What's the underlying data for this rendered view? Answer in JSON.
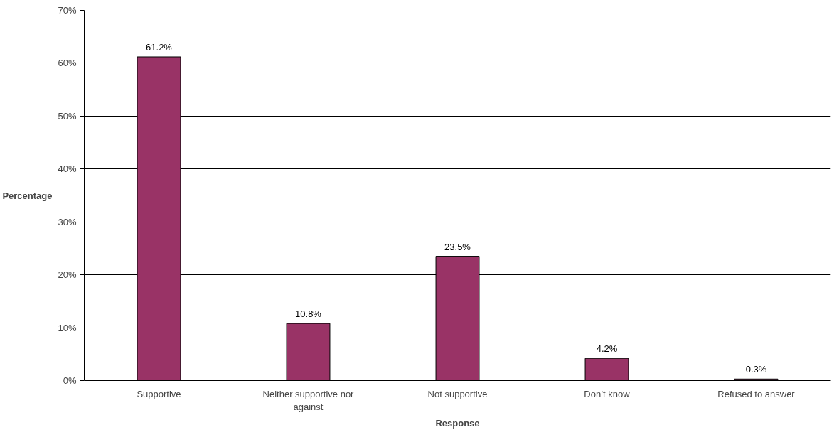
{
  "chart_data": {
    "type": "bar",
    "xlabel": "Response",
    "ylabel": "Percentage",
    "categories": [
      "Supportive",
      "Neither supportive nor against",
      "Not supportive",
      "Don’t know",
      "Refused to answer"
    ],
    "values": [
      61.2,
      10.8,
      23.5,
      4.2,
      0.3
    ],
    "value_labels": [
      "61.2%",
      "10.8%",
      "23.5%",
      "4.2%",
      "0.3%"
    ],
    "color": "#993366",
    "ylim": [
      0,
      70
    ],
    "yticks": [
      {
        "value": 0,
        "label": "0%"
      },
      {
        "value": 10,
        "label": "10%"
      },
      {
        "value": 20,
        "label": "20%"
      },
      {
        "value": 30,
        "label": "30%"
      },
      {
        "value": 40,
        "label": "40%"
      },
      {
        "value": 50,
        "label": "50%"
      },
      {
        "value": 60,
        "label": "60%"
      },
      {
        "value": 70,
        "label": "70%"
      }
    ],
    "grid": "y"
  }
}
